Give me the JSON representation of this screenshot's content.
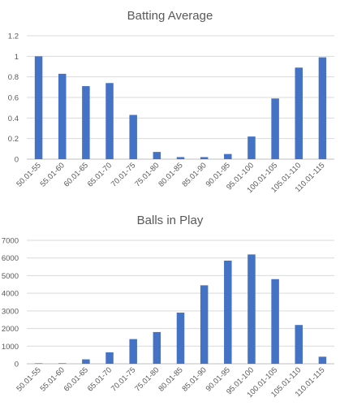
{
  "chart_data": [
    {
      "type": "bar",
      "title": "Batting Average",
      "xlabel": "",
      "ylabel": "",
      "categories": [
        "50.01-55",
        "55.01-60",
        "60.01-65",
        "65.01-70",
        "70.01-75",
        "75.01-80",
        "80.01-85",
        "85.01-90",
        "90.01-95",
        "95.01-100",
        "100.01-105",
        "105.01-110",
        "110.01-115"
      ],
      "values": [
        1.0,
        0.83,
        0.71,
        0.74,
        0.43,
        0.07,
        0.02,
        0.02,
        0.05,
        0.22,
        0.59,
        0.89,
        0.99
      ],
      "ylim": [
        0,
        1.2
      ],
      "yticks": [
        "0",
        "0.2",
        "0.4",
        "0.6",
        "0.8",
        "1",
        "1.2"
      ],
      "grid": true,
      "legend": "none",
      "bar_color": "#4472c4"
    },
    {
      "type": "bar",
      "title": "Balls in Play",
      "xlabel": "",
      "ylabel": "",
      "categories": [
        "50.01-55",
        "55.01-60",
        "60.01-65",
        "65.01-70",
        "70.01-75",
        "75.01-80",
        "80.01-85",
        "85.01-90",
        "90.01-95",
        "95.01-100",
        "100.01-105",
        "105.01-110",
        "110.01-115"
      ],
      "values": [
        20,
        30,
        250,
        650,
        1400,
        1800,
        2900,
        4450,
        5850,
        6200,
        4800,
        2200,
        400
      ],
      "ylim": [
        0,
        7000
      ],
      "yticks": [
        "0",
        "1000",
        "2000",
        "3000",
        "4000",
        "5000",
        "6000",
        "7000"
      ],
      "grid": true,
      "legend": "none",
      "bar_color": "#4472c4"
    }
  ]
}
